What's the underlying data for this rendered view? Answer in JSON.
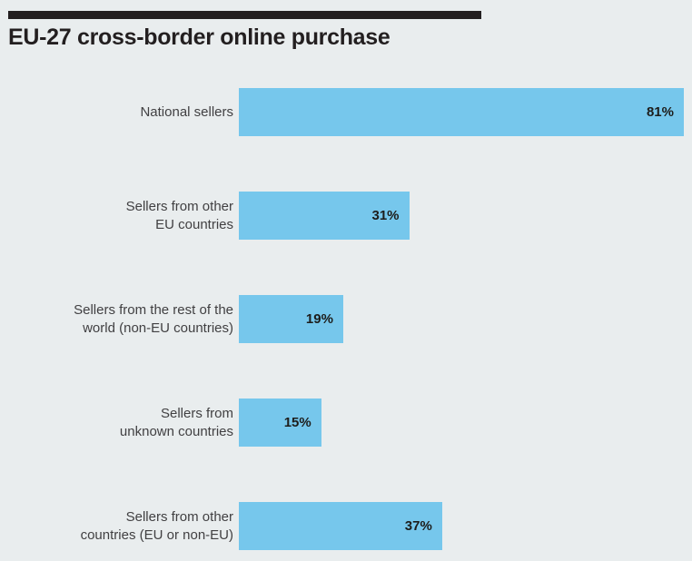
{
  "title": "EU-27 cross-border online purchase",
  "colors": {
    "background": "#e9edee",
    "bar": "#76c7ec",
    "ink": "#231f20",
    "label_text": "#414042",
    "value_text": "#1d1d1b"
  },
  "chart_data": {
    "type": "bar",
    "orientation": "horizontal",
    "title": "EU-27 cross-border online purchase",
    "categories": [
      "National sellers",
      "Sellers from other\nEU countries",
      "Sellers from the rest of the\nworld (non-EU countries)",
      "Sellers from\nunknown countries",
      "Sellers from other\ncountries (EU or non-EU)"
    ],
    "values": [
      81,
      31,
      19,
      15,
      37
    ],
    "value_labels": [
      "81%",
      "31%",
      "19%",
      "15%",
      "37%"
    ],
    "unit": "%",
    "xlim": [
      0,
      81
    ],
    "grid": false,
    "legend": false,
    "value_label_position": "inside-end",
    "category_label_position": "left"
  }
}
